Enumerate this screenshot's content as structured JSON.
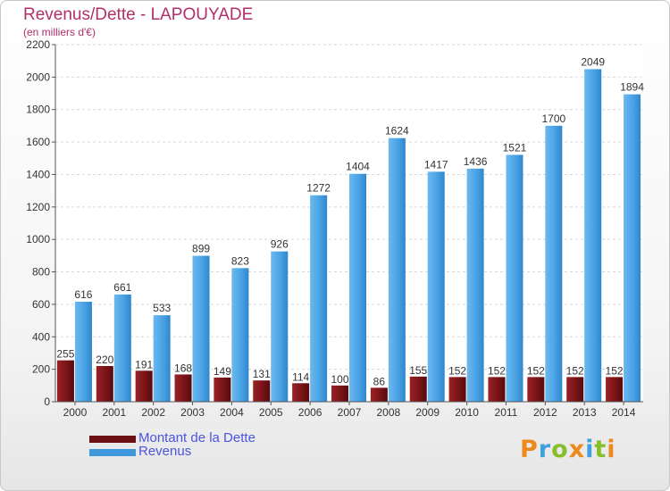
{
  "title": "Revenus/Dette - LAPOUYADE",
  "subtitle": "(en milliers d'€)",
  "logo": {
    "text": "Proxiti",
    "letters": [
      "P",
      "r",
      "o",
      "x",
      "i",
      "t",
      "i"
    ],
    "colors": [
      "#ee8a1d",
      "#3da0e0",
      "#86bf2a",
      "#ee8a1d",
      "#3da0e0",
      "#86bf2a",
      "#ee8a1d"
    ]
  },
  "legend": [
    {
      "label": "Montant de la Dette",
      "color": "#6b0f12"
    },
    {
      "label": "Revenus",
      "color": "#3f98dc"
    }
  ],
  "chart_data": {
    "type": "bar",
    "categories": [
      "2000",
      "2001",
      "2002",
      "2003",
      "2004",
      "2005",
      "2006",
      "2007",
      "2008",
      "2009",
      "2010",
      "2011",
      "2012",
      "2013",
      "2014"
    ],
    "series": [
      {
        "name": "Montant de la Dette",
        "color": "#7a1417",
        "values": [
          255,
          220,
          191,
          168,
          149,
          131,
          114,
          100,
          86,
          155,
          152,
          152,
          152,
          152,
          152
        ],
        "labels": [
          "255",
          "220",
          "191",
          "168",
          "149",
          "131",
          "114",
          "100",
          "86",
          "155",
          "152",
          "152",
          "152",
          "152",
          "152"
        ]
      },
      {
        "name": "Revenus",
        "color": "#4aa3e6",
        "values": [
          616,
          661,
          533,
          899,
          823,
          926,
          1272,
          1404,
          1624,
          1417,
          1436,
          1521,
          1700,
          2049,
          1894
        ],
        "labels": [
          "616",
          "661",
          "533",
          "899",
          "823",
          "926",
          "1272",
          "1404",
          "1624",
          "1417",
          "1436",
          "1521",
          "1700",
          "2049",
          "1894"
        ]
      }
    ],
    "yticks": [
      "0",
      "200",
      "400",
      "600",
      "800",
      "1000",
      "1200",
      "1400",
      "1600",
      "1800",
      "2000",
      "2200"
    ],
    "ylim": [
      0,
      2200
    ],
    "grid": true,
    "legend_position": "bottom-left"
  }
}
